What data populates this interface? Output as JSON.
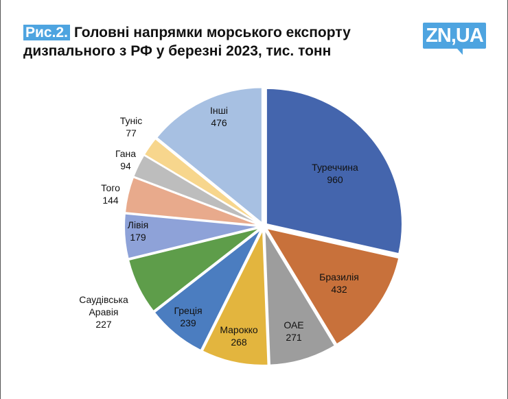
{
  "chart_data": {
    "type": "pie",
    "figure_label": "Рис.2.",
    "title": "Головні напрямки морського експорту дизпального з РФ у березні 2023, тис. тонн",
    "logo": "ZN,UA",
    "slices": [
      {
        "label": "Туреччина",
        "value": 960,
        "color": "#4465ad"
      },
      {
        "label": "Бразилія",
        "value": 432,
        "color": "#c8713b"
      },
      {
        "label": "ОАЕ",
        "value": 271,
        "color": "#9d9d9d"
      },
      {
        "label": "Марокко",
        "value": 268,
        "color": "#e3b53e"
      },
      {
        "label": "Греція",
        "value": 239,
        "color": "#4b7dc0"
      },
      {
        "label": "Саудівська Аравія",
        "value": 227,
        "color": "#5e9d4a"
      },
      {
        "label": "Лівія",
        "value": 179,
        "color": "#8ea2d8"
      },
      {
        "label": "Того",
        "value": 144,
        "color": "#e8aa8c"
      },
      {
        "label": "Гана",
        "value": 94,
        "color": "#bdbdbd"
      },
      {
        "label": "Туніс",
        "value": 77,
        "color": "#f7d68d"
      },
      {
        "label": "Інші",
        "value": 476,
        "color": "#a7c0e2"
      }
    ]
  }
}
